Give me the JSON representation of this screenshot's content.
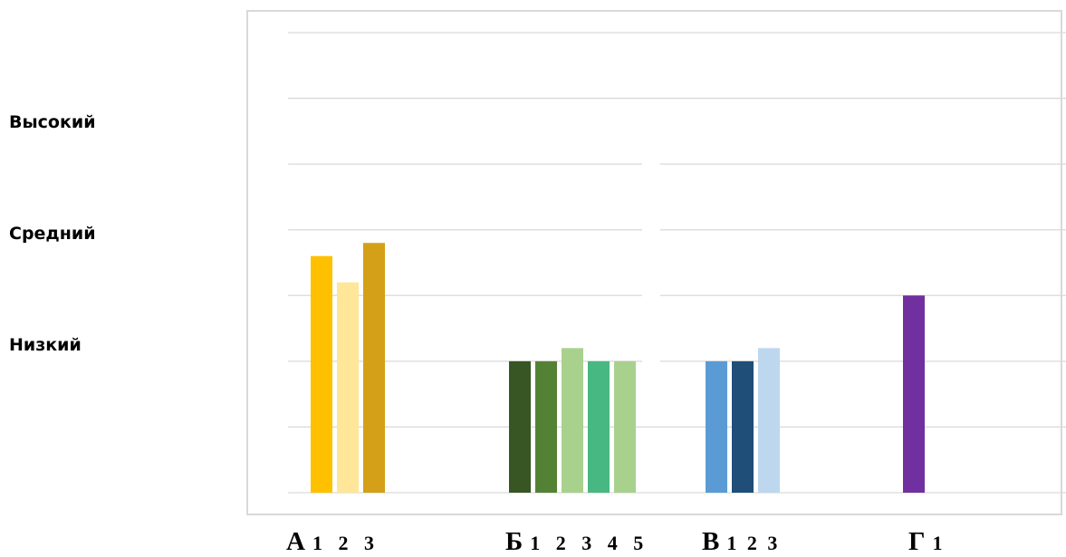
{
  "y_level_labels": [
    "Высокий",
    "Средний",
    "Низкий"
  ],
  "chart_data": {
    "type": "bar",
    "title": "",
    "xlabel": "",
    "ylabel": "",
    "ylim": [
      0,
      7
    ],
    "grid": true,
    "y_level_labels": [
      {
        "text": "Высокий",
        "y": 5.6
      },
      {
        "text": "Средний",
        "y": 4.0
      },
      {
        "text": "Низкий",
        "y": 2.3
      }
    ],
    "groups": [
      {
        "letter": "А",
        "numbers": "1 2 3",
        "values": [
          3.6,
          3.2,
          3.8
        ],
        "colors": [
          "#ffc000",
          "#ffe699",
          "#d4a017"
        ]
      },
      {
        "letter": "Б",
        "numbers": "1 2 3 4 5",
        "values": [
          2.0,
          2.0,
          2.2,
          2.0,
          2.0
        ],
        "colors": [
          "#375623",
          "#548235",
          "#a9d18e",
          "#47b881",
          "#a9d18e"
        ]
      },
      {
        "letter": "В",
        "numbers": "1 2 3",
        "values": [
          2.0,
          2.0,
          2.2
        ],
        "colors": [
          "#5b9bd5",
          "#1f4e79",
          "#bdd7ee"
        ]
      },
      {
        "letter": "Г",
        "numbers": "1",
        "values": [
          3.0
        ],
        "colors": [
          "#7030a0"
        ]
      }
    ]
  }
}
